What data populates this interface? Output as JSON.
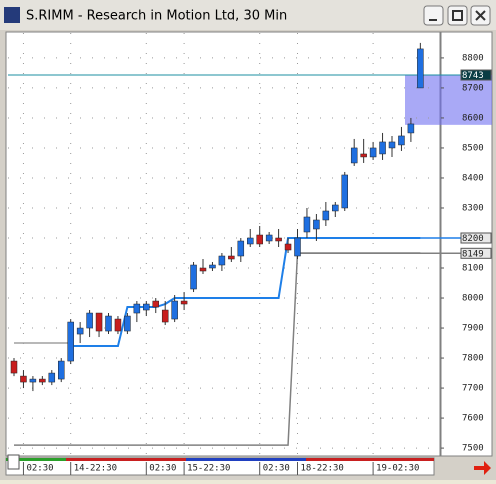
{
  "window_title": "S.RIMM - Research in Motion Ltd, 30 Min",
  "chart_data": {
    "type": "candlestick",
    "categories": [
      null,
      "02:30",
      null,
      null,
      null,
      null,
      "14-22:30",
      null,
      null,
      null,
      null,
      null,
      null,
      null,
      "02:30",
      null,
      null,
      null,
      "15-22:30",
      null,
      null,
      null,
      null,
      null,
      null,
      null,
      "02:30",
      null,
      null,
      null,
      "18-22:30",
      null,
      null,
      null,
      null,
      null,
      null,
      null,
      "19-02:30",
      null,
      null,
      null,
      null,
      null
    ],
    "open": [
      7790,
      7740,
      7720,
      7730,
      7720,
      7730,
      7790,
      7880,
      7900,
      7950,
      7890,
      7930,
      7890,
      7950,
      7960,
      7990,
      7960,
      7930,
      7990,
      8030,
      8100,
      8100,
      8110,
      8140,
      8140,
      8180,
      8210,
      8190,
      8200,
      8180,
      8140,
      8220,
      8230,
      8260,
      8290,
      8300,
      8450,
      8480,
      8470,
      8480,
      8500,
      8510,
      8550,
      8700
    ],
    "high": [
      7800,
      7760,
      7740,
      7740,
      7760,
      7800,
      7930,
      7920,
      7960,
      7950,
      7950,
      7940,
      7950,
      7990,
      7990,
      8000,
      7990,
      8010,
      8020,
      8120,
      8130,
      8120,
      8150,
      8170,
      8200,
      8230,
      8240,
      8220,
      8230,
      8200,
      8230,
      8300,
      8280,
      8320,
      8320,
      8420,
      8530,
      8530,
      8520,
      8550,
      8540,
      8570,
      8600,
      8850
    ],
    "low": [
      7740,
      7700,
      7690,
      7710,
      7710,
      7720,
      7780,
      7850,
      7870,
      7870,
      7880,
      7880,
      7880,
      7920,
      7940,
      7950,
      7910,
      7920,
      7960,
      8020,
      8080,
      8090,
      8090,
      8120,
      8120,
      8170,
      8170,
      8180,
      8170,
      8150,
      8130,
      8200,
      8190,
      8240,
      8270,
      8290,
      8440,
      8450,
      8460,
      8460,
      8470,
      8490,
      8520,
      8700
    ],
    "close": [
      7750,
      7720,
      7730,
      7720,
      7750,
      7790,
      7920,
      7900,
      7950,
      7890,
      7940,
      7890,
      7940,
      7980,
      7980,
      7970,
      7920,
      7990,
      7980,
      8110,
      8090,
      8110,
      8140,
      8130,
      8190,
      8200,
      8180,
      8210,
      8190,
      8160,
      8200,
      8270,
      8260,
      8290,
      8310,
      8410,
      8500,
      8470,
      8500,
      8520,
      8520,
      8540,
      8580,
      8830
    ],
    "up_color": "#1f6fe0",
    "down_color": "#c81e1e",
    "lines": [
      {
        "color": "#1e7fe8",
        "values": [
          null,
          null,
          null,
          null,
          null,
          null,
          7840,
          7840,
          7840,
          7840,
          7840,
          7840,
          7970,
          7970,
          7970,
          7970,
          7980,
          8000,
          8000,
          8000,
          8000,
          8000,
          8000,
          8000,
          8000,
          8000,
          8000,
          8000,
          8000,
          8200,
          8200,
          8200,
          8200,
          8200,
          8200,
          8200,
          8200,
          8200,
          8200,
          8200,
          8200,
          8200,
          8200,
          8200
        ]
      },
      {
        "color": "#a0a0a0",
        "values": [
          7850,
          7850,
          7850,
          7850,
          7850,
          7850,
          7850,
          null,
          null,
          null,
          null,
          null,
          null,
          null,
          null,
          null,
          null,
          null,
          null,
          null,
          null,
          null,
          null,
          null,
          null,
          null,
          null,
          null,
          null,
          null,
          null,
          null,
          null,
          null,
          null,
          null,
          null,
          null,
          null,
          null,
          null,
          null,
          null,
          null
        ]
      },
      {
        "color": "#808080",
        "values": [
          7510,
          7510,
          7510,
          7510,
          7510,
          7510,
          7510,
          7510,
          7510,
          7510,
          7510,
          7510,
          7510,
          7510,
          7510,
          7510,
          7510,
          7510,
          7510,
          7510,
          7510,
          7510,
          7510,
          7510,
          7510,
          7510,
          7510,
          7510,
          7510,
          7510,
          8150,
          8150,
          8150,
          8150,
          8150,
          8150,
          8150,
          8150,
          8150,
          8150,
          8150,
          8150,
          8150,
          8150
        ]
      }
    ],
    "levels": [
      {
        "value": 8743,
        "color": "#1b8fa0"
      },
      {
        "value": 8200,
        "color": "#1e7fe8"
      },
      {
        "value": 8149,
        "color": "#808080"
      }
    ],
    "highlight": [
      8577,
      8743
    ],
    "ylim": [
      7477,
      8883
    ],
    "yticks": [
      7500,
      7600,
      7700,
      7800,
      7900,
      8000,
      8100,
      8200,
      8300,
      8400,
      8500,
      8600,
      8700,
      8800
    ],
    "grid": true
  }
}
